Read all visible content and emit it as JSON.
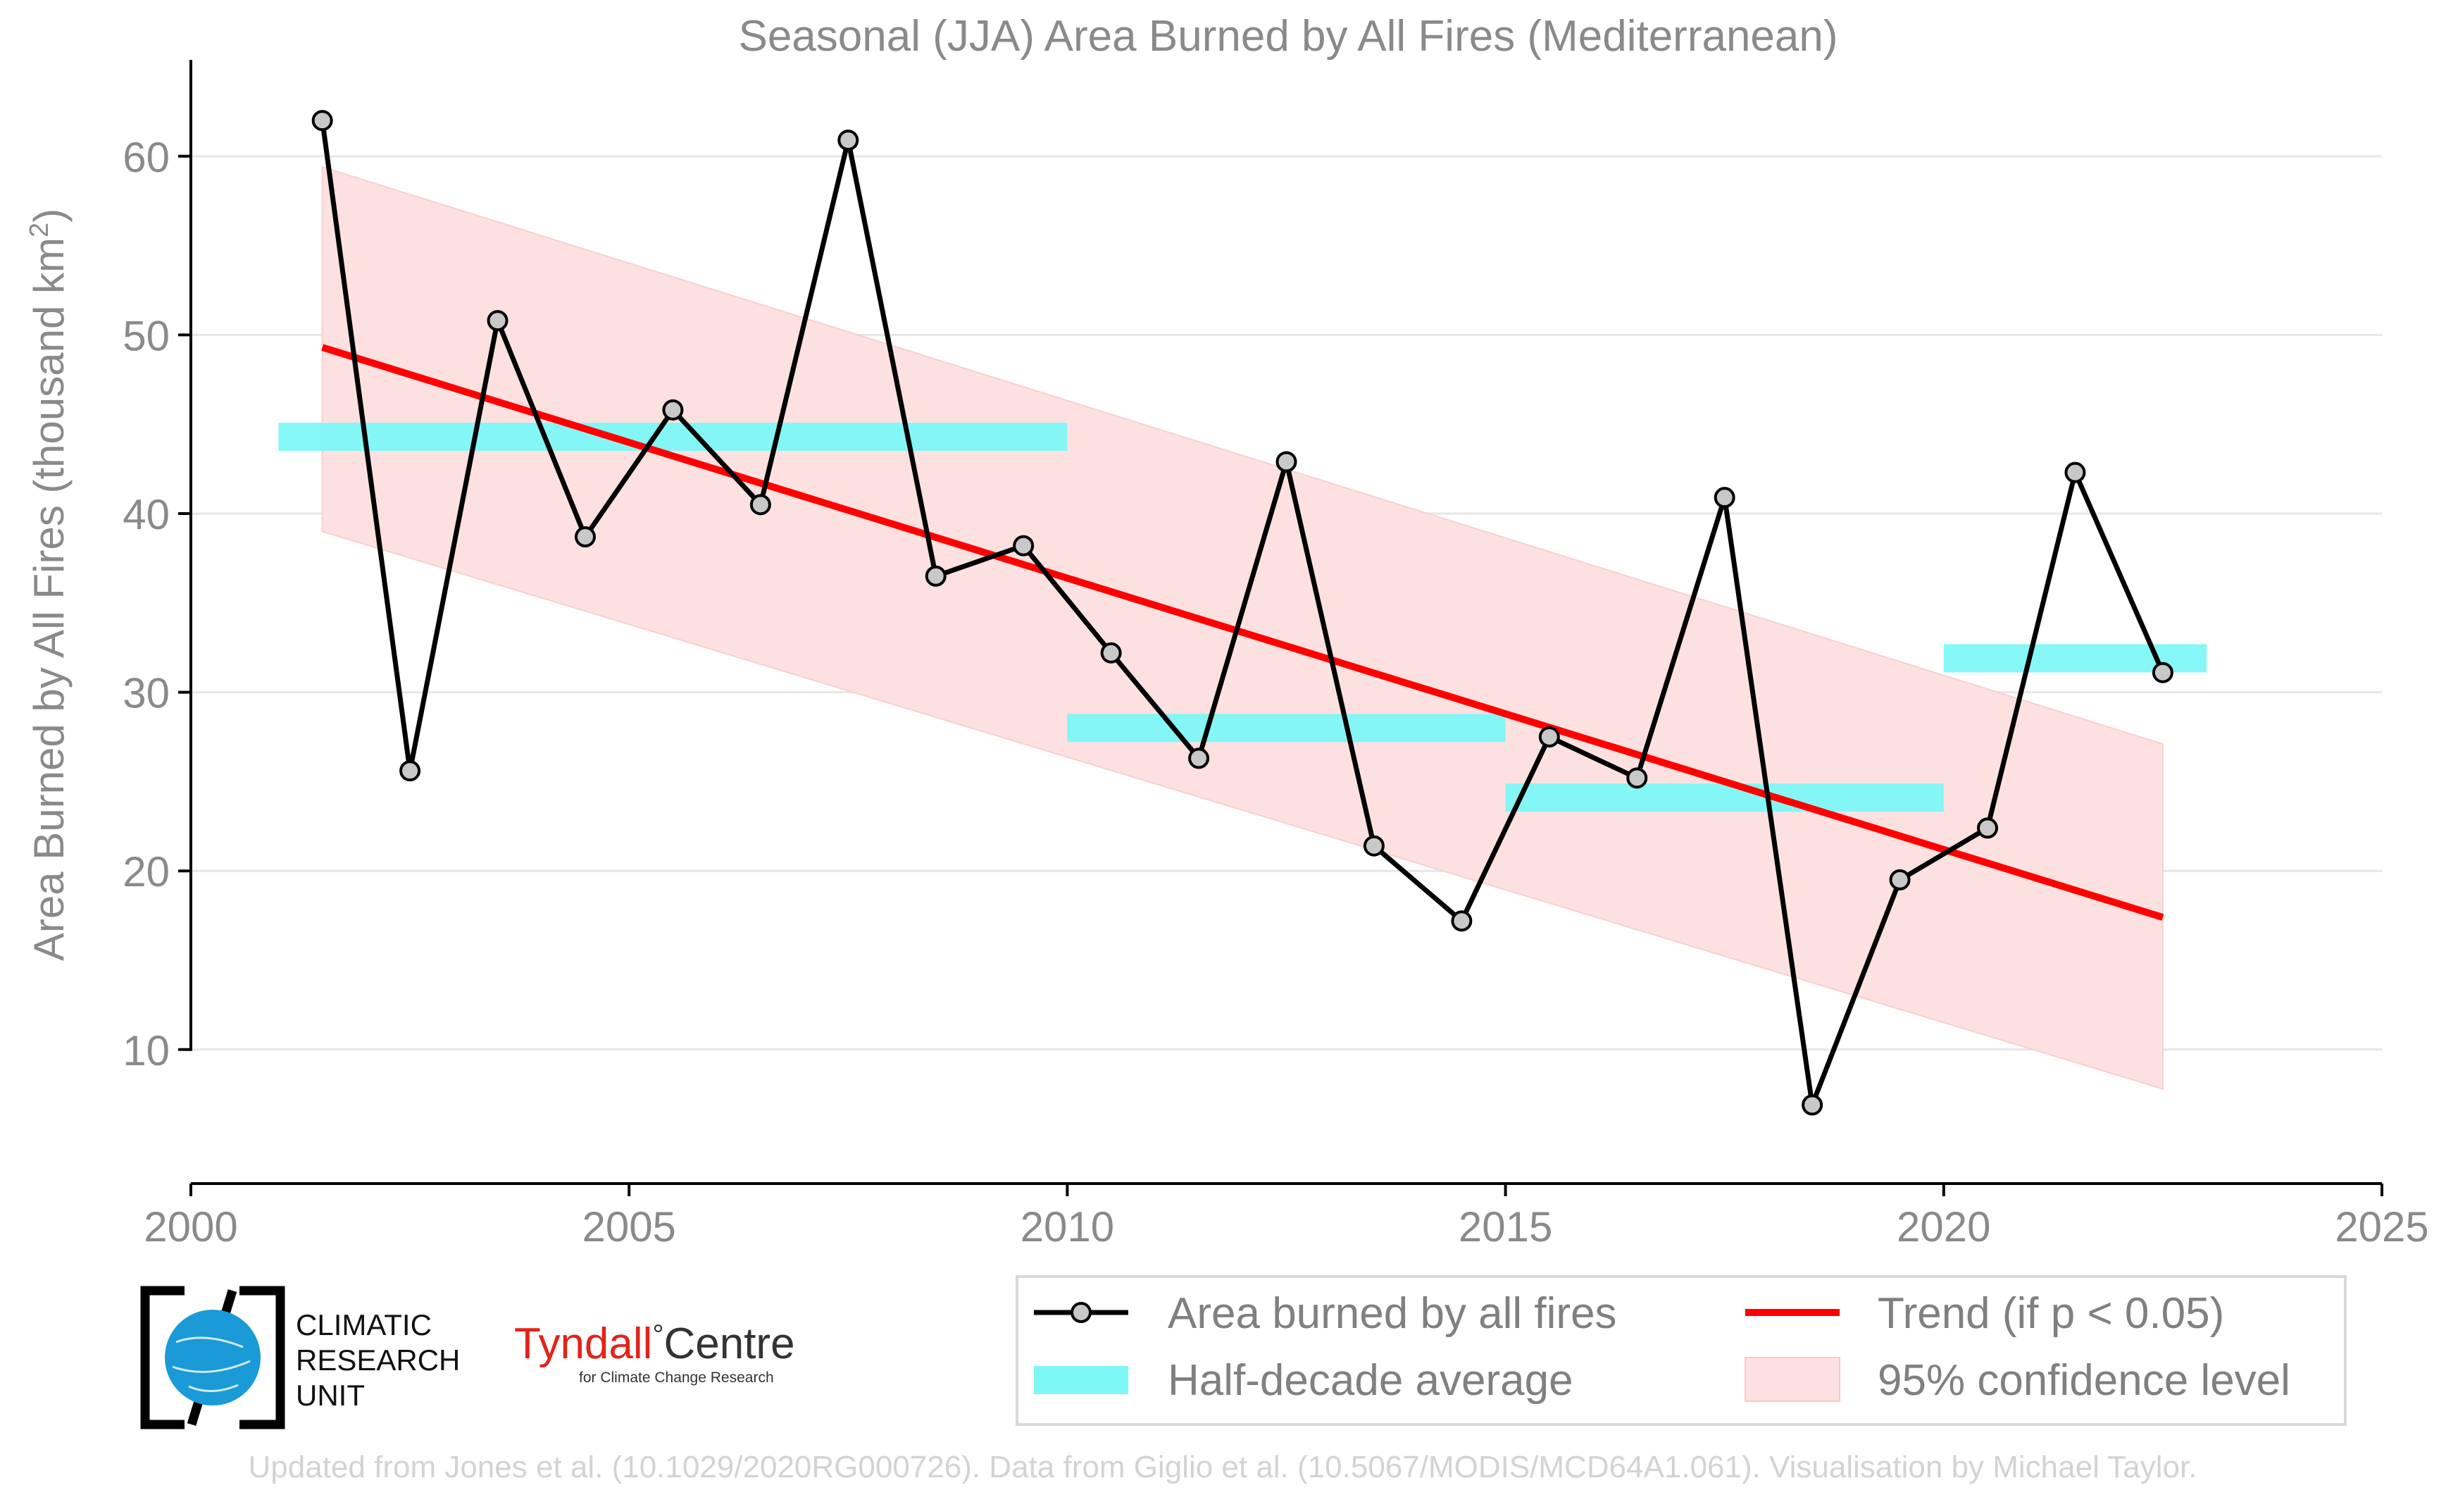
{
  "chart_data": {
    "type": "line",
    "title": "Seasonal (JJA) Area Burned by All Fires (Mediterranean)",
    "xlabel": "",
    "ylabel": "Area Burned by All Fires (thousand km",
    "ylabel_sup": "2",
    "ylabel_close": ")",
    "xlim": [
      2000,
      2025
    ],
    "ylim": [
      2.5,
      65
    ],
    "x_ticks": [
      2000,
      2005,
      2010,
      2015,
      2020,
      2025
    ],
    "y_ticks": [
      10,
      20,
      30,
      40,
      50,
      60
    ],
    "grid": "horizontal",
    "legend_position": "bottom-right",
    "series": [
      {
        "name": "Area burned by all fires",
        "type": "line",
        "color": "#000000",
        "marker_fill": "#c8c8c8",
        "x": [
          2001.5,
          2002.5,
          2003.5,
          2004.5,
          2005.5,
          2006.5,
          2007.5,
          2008.5,
          2009.5,
          2010.5,
          2011.5,
          2012.5,
          2013.5,
          2014.5,
          2015.5,
          2016.5,
          2017.5,
          2018.5,
          2019.5,
          2020.5,
          2021.5,
          2022.5
        ],
        "y": [
          62.0,
          25.6,
          50.8,
          38.7,
          45.8,
          40.5,
          60.9,
          36.5,
          38.2,
          32.2,
          26.3,
          42.9,
          21.4,
          17.2,
          27.5,
          25.2,
          40.9,
          6.9,
          19.5,
          22.4,
          42.3,
          31.1
        ]
      },
      {
        "name": "Half-decade average",
        "type": "step",
        "color": "#7df7f5",
        "segments": [
          {
            "x": [
              2001,
              2010
            ],
            "y": 44.3
          },
          {
            "x": [
              2010,
              2015
            ],
            "y": 28.0
          },
          {
            "x": [
              2015,
              2020
            ],
            "y": 24.1
          },
          {
            "x": [
              2020,
              2023
            ],
            "y": 31.9
          }
        ]
      },
      {
        "name": "Trend (if p < 0.05)",
        "type": "line",
        "color": "#ff0000",
        "x": [
          2001.5,
          2022.5
        ],
        "y": [
          49.3,
          17.4
        ]
      },
      {
        "name": "95% confidence level",
        "type": "area",
        "color": "#fde1e1",
        "x": [
          2001.5,
          2022.5
        ],
        "upper": [
          59.4,
          27.1
        ],
        "lower": [
          39.0,
          7.8
        ]
      }
    ]
  },
  "legend": {
    "items": [
      {
        "label": "Area burned by all fires"
      },
      {
        "label": "Trend (if p < 0.05)"
      },
      {
        "label": "Half-decade average"
      },
      {
        "label": "95% confidence level"
      }
    ]
  },
  "logos": {
    "cru_lines": [
      "CLIMATIC",
      "RESEARCH",
      "UNIT"
    ],
    "tyndall_main": "Tyndall",
    "tyndall_degree": "°",
    "tyndall_centre": "Centre",
    "tyndall_sub": "for Climate Change Research"
  },
  "credit": "Updated from Jones et al. (10.1029/2020RG000726). Data from Giglio et al. (10.5067/MODIS/MCD64A1.061). Visualisation by Michael Taylor.",
  "colors": {
    "text_gray": "#8a8a8a",
    "grid": "#e6e6e6",
    "trend": "#ff0000",
    "halfdecade": "#7df7f5",
    "confidence": "#fde1e1",
    "tyndall_red": "#e2231a",
    "cru_blue": "#1a9ad6"
  }
}
